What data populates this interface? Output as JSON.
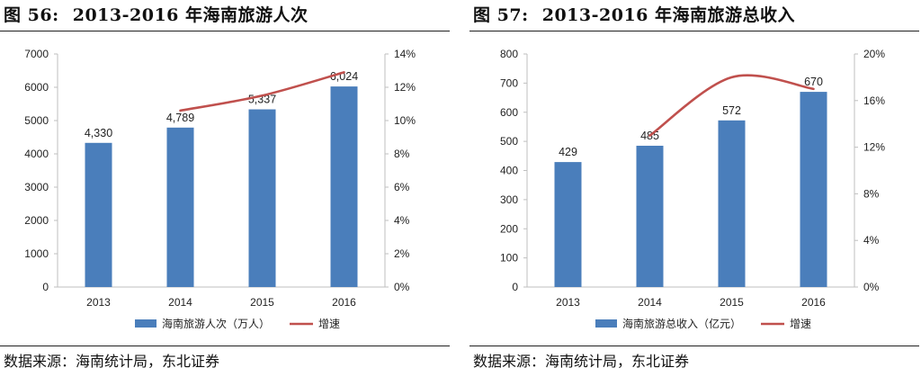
{
  "charts": [
    {
      "figure_label": "图",
      "figure_number": "56:",
      "title": "2013-2016 年海南旅游人次",
      "source_label": "数据来源：",
      "source_text": "海南统计局，东北证券"
    },
    {
      "figure_label": "图",
      "figure_number": "57:",
      "title": "2013-2016 年海南旅游总收入",
      "source_label": "数据来源：",
      "source_text": "海南统计局，东北证券"
    }
  ],
  "colors": {
    "bar": "#4a7ebb",
    "line": "#c0504d",
    "axis": "#bfbfbf"
  },
  "chart_data": [
    {
      "type": "bar",
      "categories": [
        "2013",
        "2014",
        "2015",
        "2016"
      ],
      "series": [
        {
          "name": "海南旅游人次（万人）",
          "type": "bar",
          "axis": "left",
          "values": [
            4330,
            4789,
            5337,
            6024
          ],
          "labels": [
            "4,330",
            "4,789",
            "5,337",
            "6,024"
          ]
        },
        {
          "name": "增速",
          "type": "line",
          "axis": "right",
          "values": [
            null,
            10.6,
            11.5,
            12.9
          ]
        }
      ],
      "y_left": {
        "min": 0,
        "max": 7000,
        "ticks": [
          "0",
          "1000",
          "2000",
          "3000",
          "4000",
          "5000",
          "6000",
          "7000"
        ]
      },
      "y_right": {
        "min": 0,
        "max": 14,
        "ticks": [
          "0%",
          "2%",
          "4%",
          "6%",
          "8%",
          "10%",
          "12%",
          "14%"
        ]
      },
      "legend_position": "bottom"
    },
    {
      "type": "bar",
      "categories": [
        "2013",
        "2014",
        "2015",
        "2016"
      ],
      "series": [
        {
          "name": "海南旅游总收入（亿元）",
          "type": "bar",
          "axis": "left",
          "values": [
            429,
            485,
            572,
            670
          ],
          "labels": [
            "429",
            "485",
            "572",
            "670"
          ]
        },
        {
          "name": "增速",
          "type": "line",
          "axis": "right",
          "values": [
            null,
            13.0,
            18.0,
            17.0
          ]
        }
      ],
      "y_left": {
        "min": 0,
        "max": 800,
        "ticks": [
          "0",
          "100",
          "200",
          "300",
          "400",
          "500",
          "600",
          "700",
          "800"
        ]
      },
      "y_right": {
        "min": 0,
        "max": 20,
        "ticks": [
          "0%",
          "4%",
          "8%",
          "12%",
          "16%",
          "20%"
        ]
      },
      "legend_position": "bottom"
    }
  ]
}
